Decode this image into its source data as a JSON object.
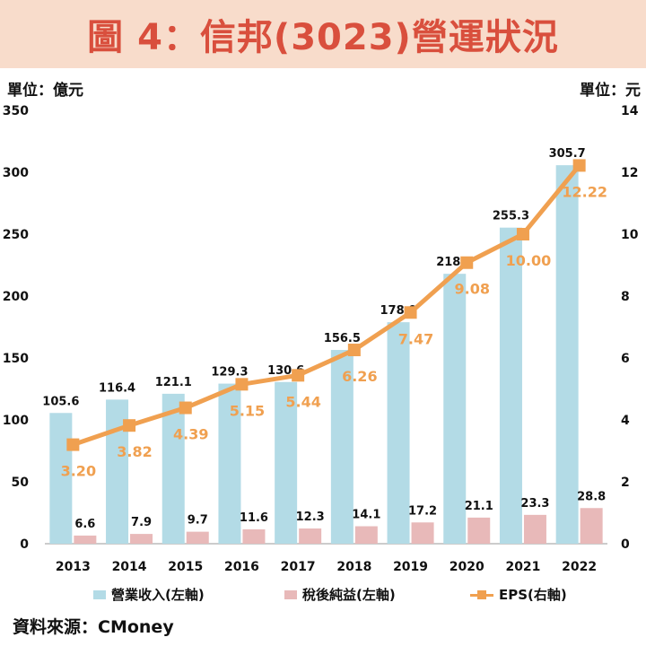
{
  "title": "圖 4：信邦(3023)營運狀況",
  "unit_left": "單位：億元",
  "unit_right": "單位：元",
  "source": "資料來源：CMoney",
  "colors": {
    "revenue": "#b3dbe6",
    "net_income": "#e8b9b9",
    "eps": "#f0a050",
    "title_bg": "#f8dccb",
    "title_text": "#d94f3d"
  },
  "chart_data": {
    "type": "bar",
    "categories": [
      "2013",
      "2014",
      "2015",
      "2016",
      "2017",
      "2018",
      "2019",
      "2020",
      "2021",
      "2022"
    ],
    "series": [
      {
        "name": "營業收入(左軸)",
        "type": "bar",
        "axis": "left",
        "values": [
          105.6,
          116.4,
          121.1,
          129.3,
          130.6,
          156.5,
          178.9,
          218.0,
          255.3,
          305.7
        ],
        "labels": [
          "105.6",
          "116.4",
          "121.1",
          "129.3",
          "130.6",
          "156.5",
          "178.9",
          "218.0",
          "255.3",
          "305.7"
        ]
      },
      {
        "name": "稅後純益(左軸)",
        "type": "bar",
        "axis": "left",
        "values": [
          6.6,
          7.9,
          9.7,
          11.6,
          12.3,
          14.1,
          17.2,
          21.1,
          23.3,
          28.8
        ],
        "labels": [
          "6.6",
          "7.9",
          "9.7",
          "11.6",
          "12.3",
          "14.1",
          "17.2",
          "21.1",
          "23.3",
          "28.8"
        ]
      },
      {
        "name": "EPS(右軸)",
        "type": "line",
        "axis": "right",
        "values": [
          3.2,
          3.82,
          4.39,
          5.15,
          5.44,
          6.26,
          7.47,
          9.08,
          10.0,
          12.22
        ],
        "labels": [
          "3.20",
          "3.82",
          "4.39",
          "5.15",
          "5.44",
          "6.26",
          "7.47",
          "9.08",
          "10.00",
          "12.22"
        ]
      }
    ],
    "y_left": {
      "range": [
        0,
        350
      ],
      "ticks": [
        "0",
        "50",
        "100",
        "150",
        "200",
        "250",
        "300",
        "350"
      ]
    },
    "y_right": {
      "range": [
        0,
        14
      ],
      "ticks": [
        "0",
        "2",
        "4",
        "6",
        "8",
        "10",
        "12",
        "14"
      ]
    },
    "grid": false,
    "legend_position": "bottom"
  }
}
